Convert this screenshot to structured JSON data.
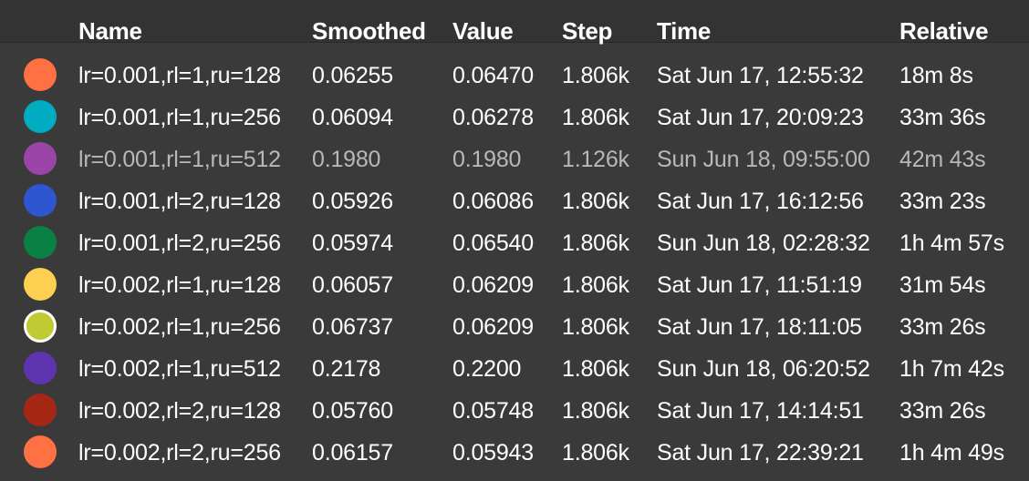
{
  "columns": {
    "name": "Name",
    "smoothed": "Smoothed",
    "value": "Value",
    "step": "Step",
    "time": "Time",
    "relative": "Relative"
  },
  "rows": [
    {
      "color": "#ff7043",
      "name": "lr=0.001,rl=1,ru=128",
      "smoothed": "0.06255",
      "value": "0.06470",
      "step": "1.806k",
      "time": "Sat Jun 17, 12:55:32",
      "relative": "18m 8s",
      "dimmed": false,
      "selected": false
    },
    {
      "color": "#00acc1",
      "name": "lr=0.001,rl=1,ru=256",
      "smoothed": "0.06094",
      "value": "0.06278",
      "step": "1.806k",
      "time": "Sat Jun 17, 20:09:23",
      "relative": "33m 36s",
      "dimmed": false,
      "selected": false
    },
    {
      "color": "#9c45a8",
      "name": "lr=0.001,rl=1,ru=512",
      "smoothed": "0.1980",
      "value": "0.1980",
      "step": "1.126k",
      "time": "Sun Jun 18, 09:55:00",
      "relative": "42m 43s",
      "dimmed": true,
      "selected": false
    },
    {
      "color": "#2f56d1",
      "name": "lr=0.001,rl=2,ru=128",
      "smoothed": "0.05926",
      "value": "0.06086",
      "step": "1.806k",
      "time": "Sat Jun 17, 16:12:56",
      "relative": "33m 23s",
      "dimmed": false,
      "selected": false
    },
    {
      "color": "#0b8043",
      "name": "lr=0.001,rl=2,ru=256",
      "smoothed": "0.05974",
      "value": "0.06540",
      "step": "1.806k",
      "time": "Sun Jun 18, 02:28:32",
      "relative": "1h 4m 57s",
      "dimmed": false,
      "selected": false
    },
    {
      "color": "#fdd052",
      "name": "lr=0.002,rl=1,ru=128",
      "smoothed": "0.06057",
      "value": "0.06209",
      "step": "1.806k",
      "time": "Sat Jun 17, 11:51:19",
      "relative": "31m 54s",
      "dimmed": false,
      "selected": false
    },
    {
      "color": "#c0ca33",
      "name": "lr=0.002,rl=1,ru=256",
      "smoothed": "0.06737",
      "value": "0.06209",
      "step": "1.806k",
      "time": "Sat Jun 17, 18:11:05",
      "relative": "33m 26s",
      "dimmed": false,
      "selected": true
    },
    {
      "color": "#5e35b1",
      "name": "lr=0.002,rl=1,ru=512",
      "smoothed": "0.2178",
      "value": "0.2200",
      "step": "1.806k",
      "time": "Sun Jun 18, 06:20:52",
      "relative": "1h 7m 42s",
      "dimmed": false,
      "selected": false
    },
    {
      "color": "#a52714",
      "name": "lr=0.002,rl=2,ru=128",
      "smoothed": "0.05760",
      "value": "0.05748",
      "step": "1.806k",
      "time": "Sat Jun 17, 14:14:51",
      "relative": "33m 26s",
      "dimmed": false,
      "selected": false
    },
    {
      "color": "#ff7043",
      "name": "lr=0.002,rl=2,ru=256",
      "smoothed": "0.06157",
      "value": "0.05943",
      "step": "1.806k",
      "time": "Sat Jun 17, 22:39:21",
      "relative": "1h 4m 49s",
      "dimmed": false,
      "selected": false
    }
  ]
}
